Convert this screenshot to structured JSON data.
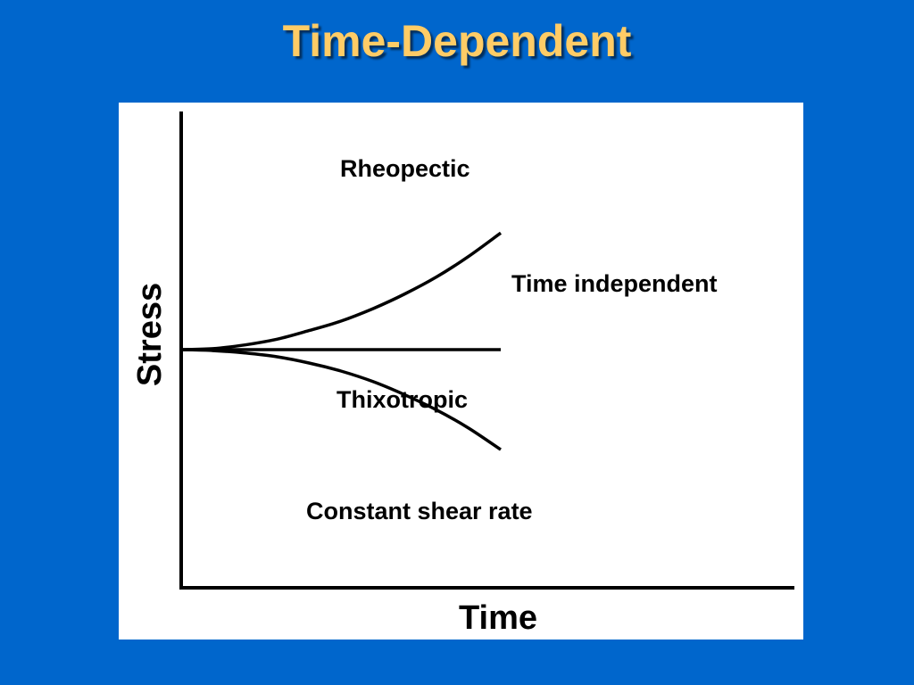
{
  "slide": {
    "title": "Time-Dependent",
    "background_color": "#0066CC",
    "title_color": "#FFCC66",
    "panel_color": "#FFFFFF"
  },
  "chart_data": {
    "type": "line",
    "xlabel": "Time",
    "ylabel": "Stress",
    "annotation": "Constant shear rate",
    "x_range": [
      0,
      1
    ],
    "y_range": [
      0,
      1
    ],
    "grid": false,
    "series": [
      {
        "name": "Rheopectic",
        "x": [
          0,
          0.1,
          0.2,
          0.3,
          0.4,
          0.5,
          0.6,
          0.7,
          0.8,
          0.9,
          1.0
        ],
        "y": [
          0.5,
          0.502,
          0.51,
          0.522,
          0.54,
          0.56,
          0.586,
          0.617,
          0.653,
          0.696,
          0.745
        ]
      },
      {
        "name": "Time independent",
        "x": [
          0,
          1
        ],
        "y": [
          0.5,
          0.5
        ]
      },
      {
        "name": "Thixotropic",
        "x": [
          0,
          0.1,
          0.2,
          0.3,
          0.4,
          0.5,
          0.6,
          0.7,
          0.8,
          0.9,
          1.0
        ],
        "y": [
          0.5,
          0.498,
          0.493,
          0.485,
          0.472,
          0.455,
          0.433,
          0.405,
          0.373,
          0.335,
          0.29
        ]
      }
    ]
  }
}
